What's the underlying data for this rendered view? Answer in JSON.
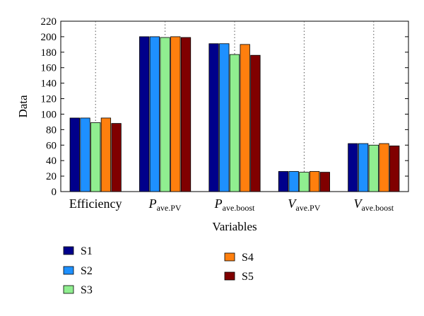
{
  "chart_data": {
    "type": "bar",
    "xlabel": "Variables",
    "ylabel": "Data",
    "ylim": [
      0,
      220
    ],
    "yticks": [
      0,
      20,
      40,
      60,
      80,
      100,
      120,
      140,
      160,
      180,
      200,
      220
    ],
    "grid": "vertical dotted lines at category centers",
    "legend_position": "below chart, two columns",
    "categories": [
      {
        "base": "Efficiency",
        "sub": ""
      },
      {
        "base": "P",
        "sub": "ave.PV"
      },
      {
        "base": "P",
        "sub": "ave.boost"
      },
      {
        "base": "V",
        "sub": "ave.PV"
      },
      {
        "base": "V",
        "sub": "ave.boost"
      }
    ],
    "series": [
      {
        "name": "S1",
        "color": "#00008b",
        "values": [
          95,
          200,
          191,
          26,
          62
        ]
      },
      {
        "name": "S2",
        "color": "#1e90ff",
        "values": [
          95,
          200,
          191,
          26,
          62
        ]
      },
      {
        "name": "S3",
        "color": "#90ee90",
        "values": [
          89,
          199,
          177,
          25,
          60
        ]
      },
      {
        "name": "S4",
        "color": "#ff7f0e",
        "values": [
          95,
          200,
          190,
          26,
          62
        ]
      },
      {
        "name": "S5",
        "color": "#800000",
        "values": [
          88,
          199,
          176,
          25,
          59
        ]
      }
    ]
  }
}
